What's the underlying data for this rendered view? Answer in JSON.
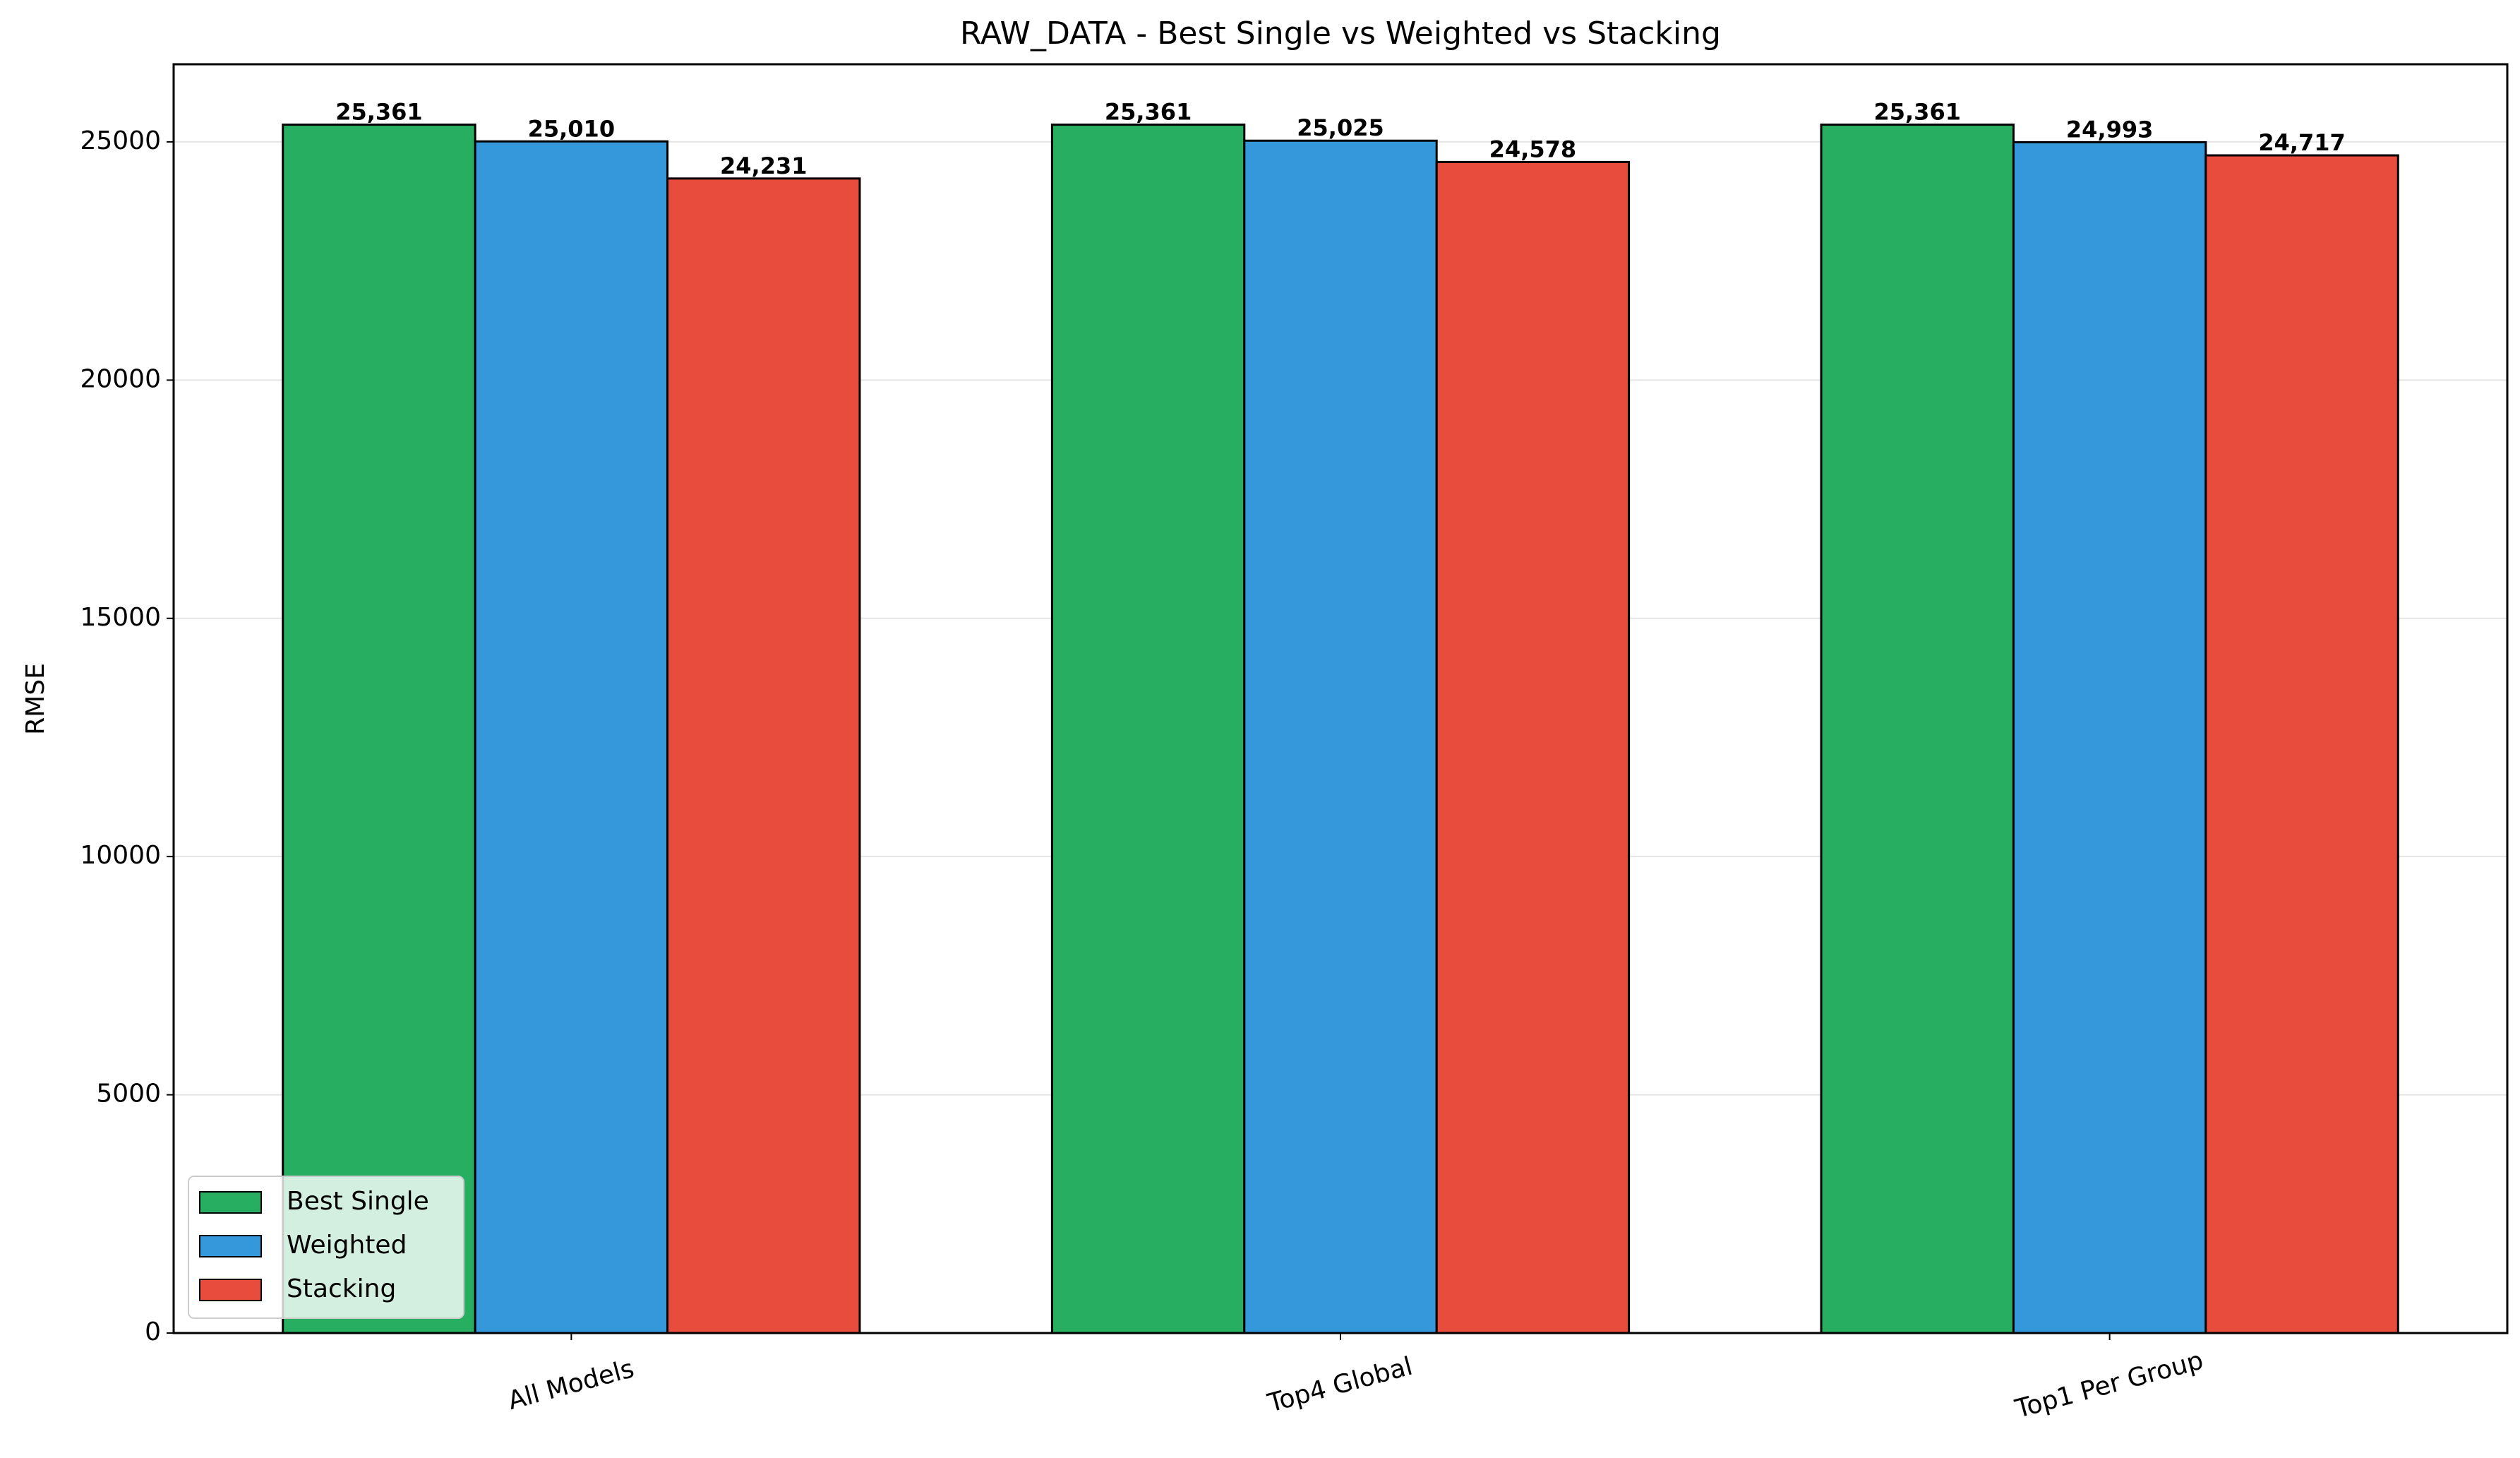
{
  "chart_data": {
    "type": "bar",
    "title": "RAW_DATA - Best Single vs Weighted vs Stacking",
    "y_label": "RMSE",
    "categories": [
      "All Models",
      "Top4 Global",
      "Top1 Per Group"
    ],
    "series": [
      {
        "name": "Best Single",
        "color": "#27ae60",
        "values": [
          25361,
          25361,
          25361
        ],
        "value_labels": [
          "25,361",
          "25,361",
          "25,361"
        ]
      },
      {
        "name": "Weighted",
        "color": "#3498db",
        "values": [
          25010,
          25025,
          24993
        ],
        "value_labels": [
          "25,010",
          "25,025",
          "24,993"
        ]
      },
      {
        "name": "Stacking",
        "color": "#e74c3c",
        "values": [
          24231,
          24578,
          24717
        ],
        "value_labels": [
          "24,231",
          "24,578",
          "24,717"
        ]
      }
    ],
    "ylim": [
      0,
      26629
    ],
    "yticks": [
      0,
      5000,
      10000,
      15000,
      20000,
      25000
    ],
    "grid": true,
    "legend": "lower left"
  }
}
